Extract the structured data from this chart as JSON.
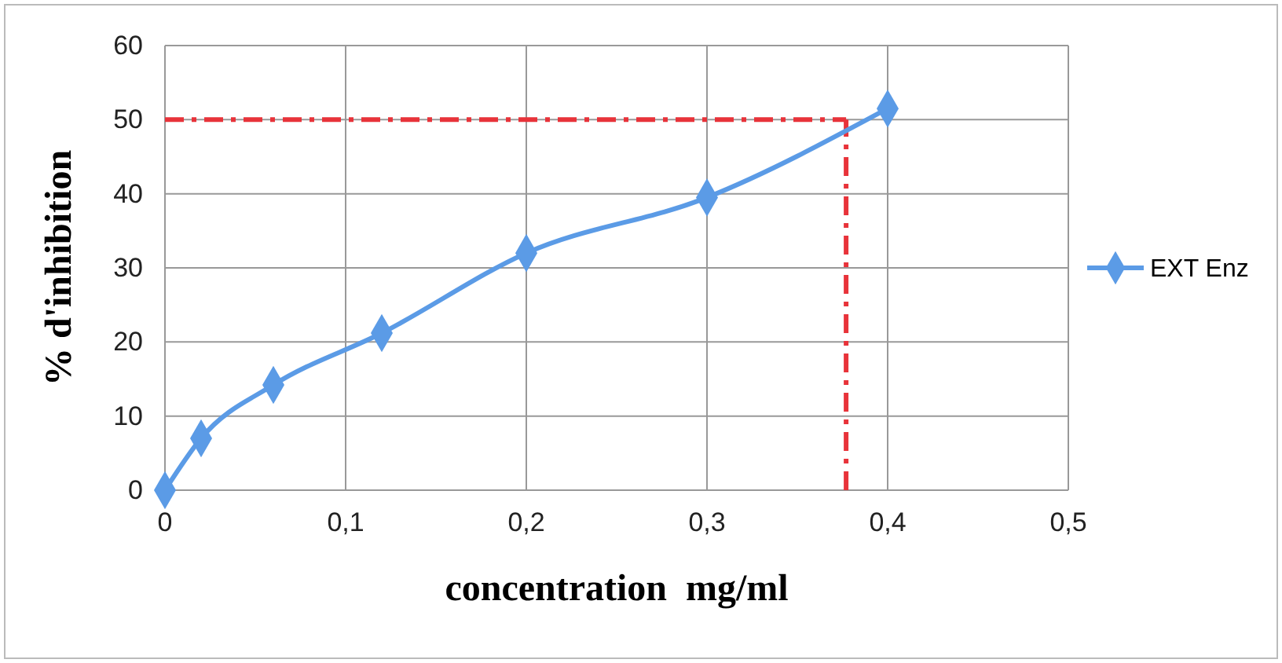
{
  "chart_data": {
    "type": "line",
    "xlabel": "concentration  mg/ml",
    "ylabel": "% d'inhibition",
    "x": [
      0,
      0.02,
      0.06,
      0.12,
      0.2,
      0.3,
      0.4
    ],
    "series": [
      {
        "name": "EXT Enz",
        "color": "#5b9be6",
        "values": [
          0,
          7,
          14.2,
          21.2,
          32,
          39.5,
          51.5
        ]
      }
    ],
    "xlim": [
      0,
      0.5
    ],
    "xticks": [
      0,
      {
        "value": 0.1,
        "label": "0,1"
      },
      {
        "value": 0.2,
        "label": "0,2"
      },
      {
        "value": 0.3,
        "label": "0,3"
      },
      {
        "value": 0.4,
        "label": "0,4"
      },
      {
        "value": 0.5,
        "label": "0,5"
      }
    ],
    "ylim": [
      0,
      60
    ],
    "yticks": [
      0,
      10,
      20,
      30,
      40,
      50,
      60
    ],
    "grid": true,
    "legend": "right",
    "marker": "diamond",
    "line_style": "solid",
    "ref_lines": [
      {
        "axis": "y",
        "value": 50,
        "color": "#e8333a",
        "line_style": "dashdot"
      },
      {
        "axis": "x",
        "value": 0.377,
        "color": "#e8333a",
        "line_style": "dashdot"
      }
    ]
  }
}
